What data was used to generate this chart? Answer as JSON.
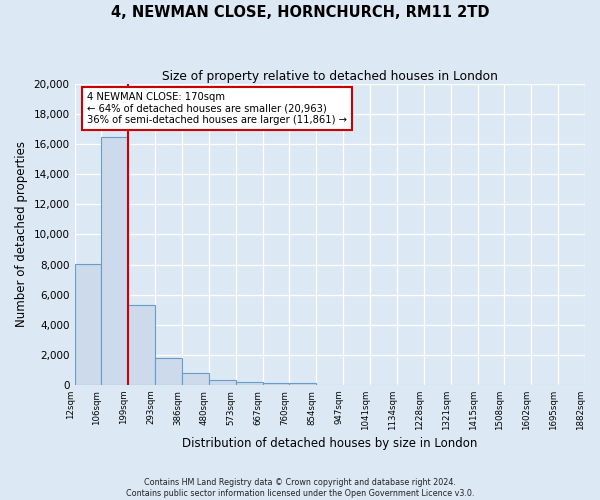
{
  "title_line1": "4, NEWMAN CLOSE, HORNCHURCH, RM11 2TD",
  "title_line2": "Size of property relative to detached houses in London",
  "xlabel": "Distribution of detached houses by size in London",
  "ylabel": "Number of detached properties",
  "bar_values": [
    8050,
    16500,
    5300,
    1800,
    800,
    300,
    200,
    95,
    90,
    0,
    0,
    0,
    0,
    0,
    0,
    0,
    0,
    0,
    0
  ],
  "bar_edge_labels": [
    "12sqm",
    "106sqm",
    "199sqm",
    "293sqm",
    "386sqm",
    "480sqm",
    "573sqm",
    "667sqm",
    "760sqm",
    "854sqm",
    "947sqm",
    "1041sqm",
    "1134sqm",
    "1228sqm",
    "1321sqm",
    "1415sqm",
    "1508sqm",
    "1602sqm",
    "1695sqm",
    "1882sqm"
  ],
  "bar_color": "#ccdaeb",
  "bar_edge_color": "#6a9cc8",
  "red_line_bin": 2,
  "ylim_max": 20000,
  "ytick_step": 2000,
  "annotation_title": "4 NEWMAN CLOSE: 170sqm",
  "annotation_line1": "← 64% of detached houses are smaller (20,963)",
  "annotation_line2": "36% of semi-detached houses are larger (11,861) →",
  "footer_line1": "Contains HM Land Registry data © Crown copyright and database right 2024.",
  "footer_line2": "Contains public sector information licensed under the Open Government Licence v3.0.",
  "bg_color": "#dde8f5"
}
